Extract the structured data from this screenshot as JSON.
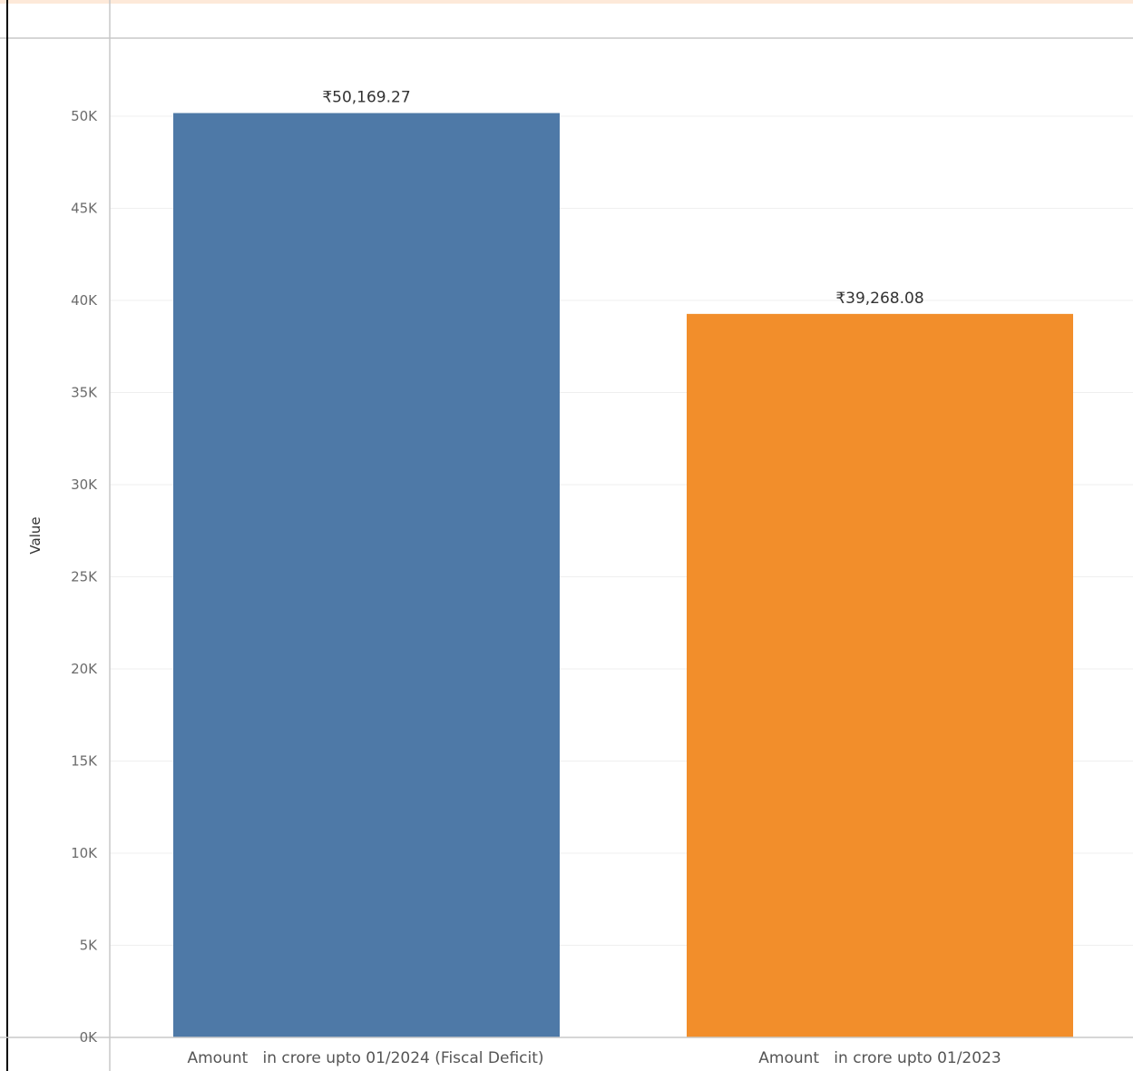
{
  "chart_data": {
    "type": "bar",
    "ylabel": "Value",
    "ylim": [
      0,
      53000
    ],
    "yticks": [
      0,
      5000,
      10000,
      15000,
      20000,
      25000,
      30000,
      35000,
      40000,
      45000,
      50000
    ],
    "ytick_labels": [
      "0K",
      "5K",
      "10K",
      "15K",
      "20K",
      "25K",
      "30K",
      "35K",
      "40K",
      "45K",
      "50K"
    ],
    "categories": [
      "Amount   in crore upto 01/2024 (Fiscal Deficit)",
      "Amount   in crore upto 01/2023"
    ],
    "values": [
      50169.27,
      39268.08
    ],
    "value_labels": [
      "₹50,169.27",
      "₹39,268.08"
    ],
    "colors": [
      "#4e79a7",
      "#f28e2b"
    ],
    "grid": true,
    "legend": "none"
  },
  "theme": {
    "top_band": "#fde9d9",
    "axis_line": "#c8c8c8",
    "gridline": "#efefef",
    "frame": "#000000"
  }
}
